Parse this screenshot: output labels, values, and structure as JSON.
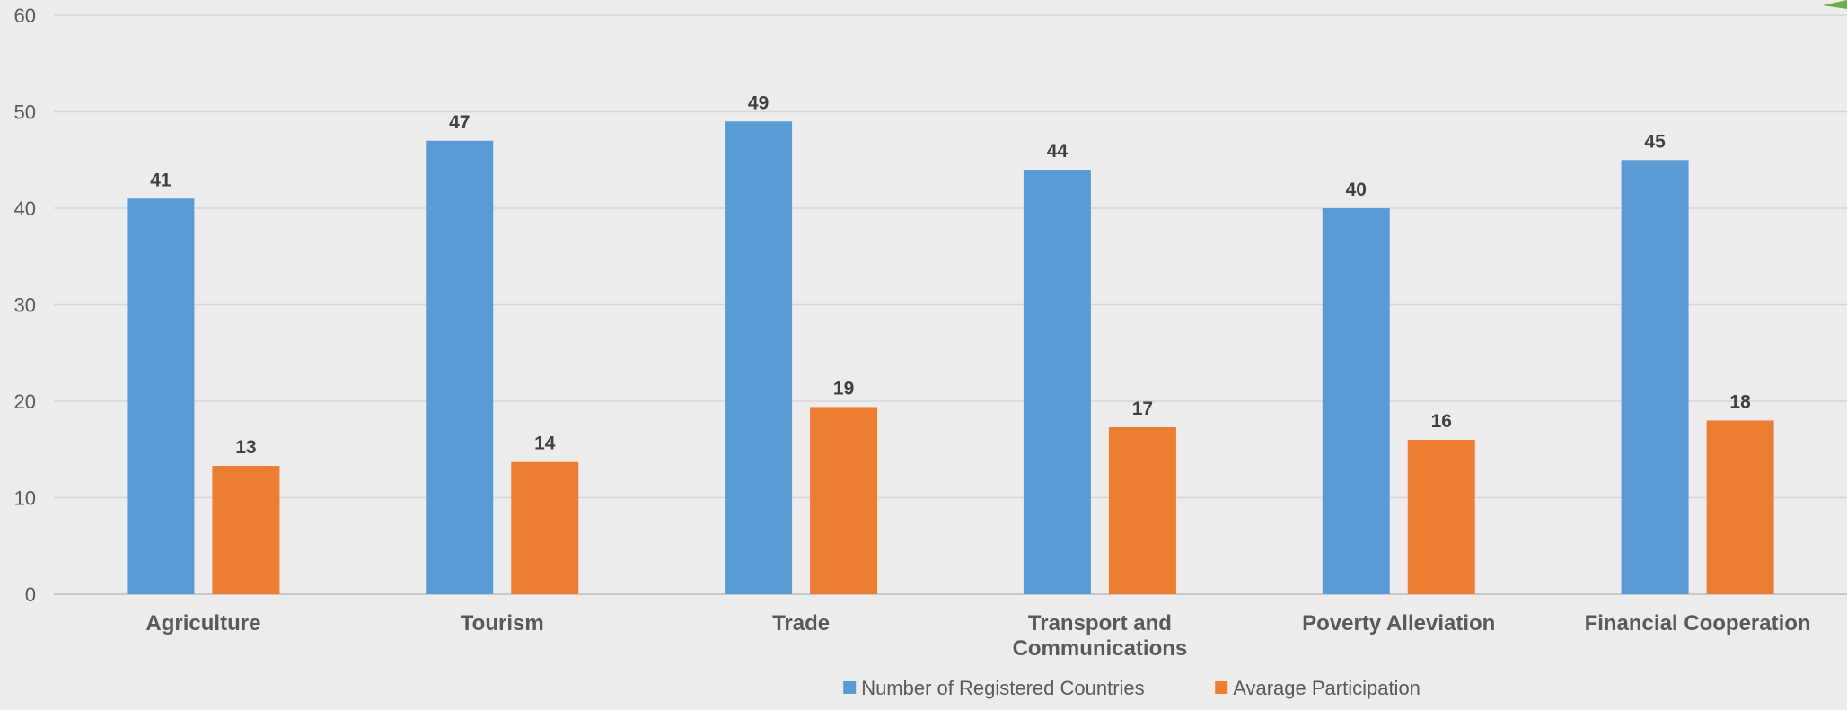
{
  "chart_data": {
    "type": "bar",
    "title": "",
    "xlabel": "",
    "ylabel": "",
    "ylim": [
      0,
      60
    ],
    "yticks": [
      0,
      10,
      20,
      30,
      40,
      50,
      60
    ],
    "grid": true,
    "legend_position": "bottom",
    "categories": [
      "Agriculture",
      "Tourism",
      "Trade",
      "Transport and Communications",
      "Poverty Alleviation",
      "Financial Cooperation"
    ],
    "series": [
      {
        "name": "Number of Registered Countries",
        "color": "#5b9bd5",
        "values": [
          41,
          47,
          49,
          44,
          40,
          45
        ],
        "labels": [
          "41",
          "47",
          "49",
          "44",
          "40",
          "45"
        ]
      },
      {
        "name": "Avarage Participation",
        "color": "#ed7d31",
        "values": [
          13.3,
          13.7,
          19.4,
          17.3,
          16,
          18
        ],
        "labels": [
          "13",
          "14",
          "19",
          "17",
          "16",
          "18"
        ]
      }
    ]
  },
  "decoration": {
    "corner_mark_color": "#70ad47"
  }
}
